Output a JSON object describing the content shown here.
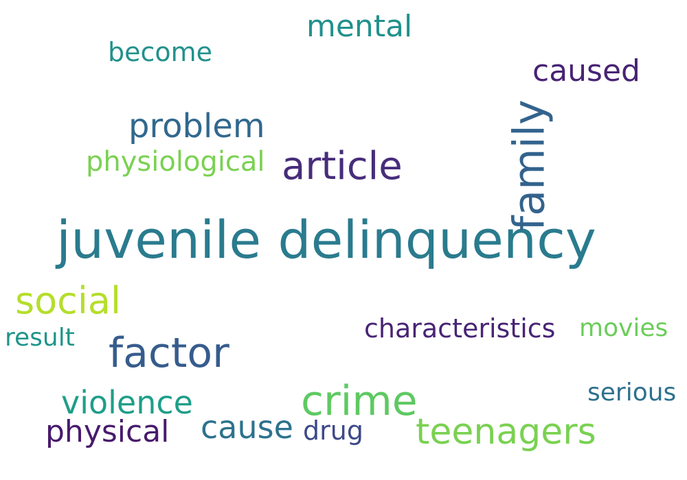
{
  "words": [
    {
      "id": "juvenile_delinquency",
      "text": "juvenile delinquency",
      "color": "#2a7b8e"
    },
    {
      "id": "family",
      "text": "family",
      "color": "#33638d"
    },
    {
      "id": "factor",
      "text": "factor",
      "color": "#365c8d"
    },
    {
      "id": "crime",
      "text": "crime",
      "color": "#5ec962"
    },
    {
      "id": "article",
      "text": "article",
      "color": "#472d7b"
    },
    {
      "id": "social",
      "text": "social",
      "color": "#b5de2b"
    },
    {
      "id": "teenagers",
      "text": "teenagers",
      "color": "#7ad151"
    },
    {
      "id": "problem",
      "text": "problem",
      "color": "#31688e"
    },
    {
      "id": "violence",
      "text": "violence",
      "color": "#1f9e89"
    },
    {
      "id": "cause",
      "text": "cause",
      "color": "#2c728e"
    },
    {
      "id": "physical",
      "text": "physical",
      "color": "#481a6c"
    },
    {
      "id": "mental",
      "text": "mental",
      "color": "#21918c"
    },
    {
      "id": "caused",
      "text": "caused",
      "color": "#482374"
    },
    {
      "id": "physiological",
      "text": "physiological",
      "color": "#7ad151"
    },
    {
      "id": "characteristics",
      "text": "characteristics",
      "color": "#482475"
    },
    {
      "id": "become",
      "text": "become",
      "color": "#21918c"
    },
    {
      "id": "drug",
      "text": "drug",
      "color": "#3e4989"
    },
    {
      "id": "movies",
      "text": "movies",
      "color": "#6ccd5a"
    },
    {
      "id": "result",
      "text": "result",
      "color": "#1f968b"
    },
    {
      "id": "serious",
      "text": "serious",
      "color": "#2d708e"
    }
  ]
}
